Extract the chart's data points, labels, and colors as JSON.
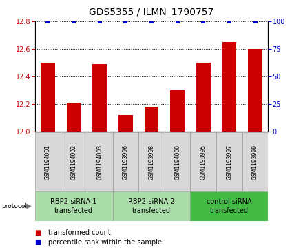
{
  "title": "GDS5355 / ILMN_1790757",
  "samples": [
    "GSM1194001",
    "GSM1194002",
    "GSM1194003",
    "GSM1193996",
    "GSM1193998",
    "GSM1194000",
    "GSM1193995",
    "GSM1193997",
    "GSM1193999"
  ],
  "bar_values": [
    12.5,
    12.21,
    12.49,
    12.12,
    12.18,
    12.3,
    12.5,
    12.65,
    12.6
  ],
  "percentile_values": [
    100,
    100,
    100,
    100,
    100,
    100,
    100,
    100,
    100
  ],
  "bar_color": "#cc0000",
  "percentile_color": "#0000cc",
  "ylim_left": [
    12.0,
    12.8
  ],
  "ylim_right": [
    0,
    100
  ],
  "yticks_left": [
    12.0,
    12.2,
    12.4,
    12.6,
    12.8
  ],
  "yticks_right": [
    0,
    25,
    50,
    75,
    100
  ],
  "groups": [
    {
      "label": "RBP2-siRNA-1\ntransfected",
      "start": 0,
      "end": 3,
      "color": "#aaddaa"
    },
    {
      "label": "RBP2-siRNA-2\ntransfected",
      "start": 3,
      "end": 6,
      "color": "#aaddaa"
    },
    {
      "label": "control siRNA\ntransfected",
      "start": 6,
      "end": 9,
      "color": "#44bb44"
    }
  ],
  "protocol_label": "protocol",
  "legend_items": [
    {
      "label": "transformed count",
      "color": "#cc0000"
    },
    {
      "label": "percentile rank within the sample",
      "color": "#0000cc"
    }
  ],
  "sample_bg_color": "#d8d8d8",
  "plot_bg": "#ffffff",
  "bar_width": 0.55,
  "title_fontsize": 10,
  "tick_fontsize": 7,
  "sample_fontsize": 5.5,
  "group_fontsize": 7,
  "legend_fontsize": 7
}
